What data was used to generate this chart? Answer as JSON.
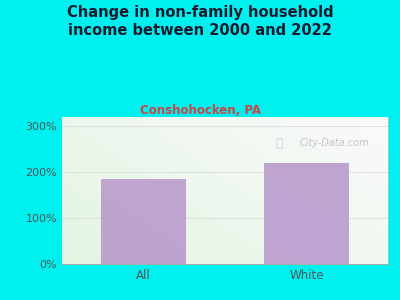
{
  "title": "Change in non-family household\nincome between 2000 and 2022",
  "subtitle": "Conshohocken, PA",
  "categories": [
    "All",
    "White"
  ],
  "values": [
    185,
    220
  ],
  "bar_color": "#b899cc",
  "background_color": "#00f0f0",
  "title_color": "#1a1a2e",
  "subtitle_color": "#cc4444",
  "tick_color": "#555555",
  "yticks": [
    0,
    100,
    200,
    300
  ],
  "ytick_labels": [
    "0%",
    "100%",
    "200%",
    "300%"
  ],
  "ylim": [
    0,
    320
  ],
  "title_fontsize": 10.5,
  "subtitle_fontsize": 8.5,
  "watermark": "City-Data.com",
  "watermark_color": "#bbbbbb",
  "grid_color": "#dddddd",
  "plot_green": [
    0.85,
    0.95,
    0.85
  ],
  "plot_white": [
    0.98,
    0.98,
    0.98
  ]
}
